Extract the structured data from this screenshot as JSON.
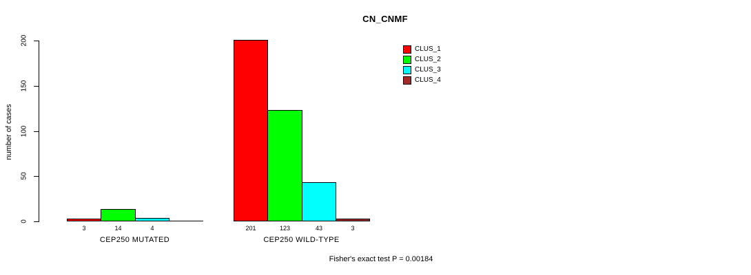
{
  "chart_data": {
    "type": "bar",
    "title": "CN_CNMF",
    "ylabel": "number of cases",
    "xlabel": "",
    "ylim": [
      0,
      200
    ],
    "yticks": [
      0,
      50,
      100,
      150,
      200
    ],
    "grid": false,
    "legend_position": "top-right",
    "series": [
      {
        "name": "CLUS_1",
        "color": "#FF0000"
      },
      {
        "name": "CLUS_2",
        "color": "#00FF00"
      },
      {
        "name": "CLUS_3",
        "color": "#00FFFF"
      },
      {
        "name": "CLUS_4",
        "color": "#A52A2A"
      }
    ],
    "groups": [
      {
        "label": "CEP250 MUTATED",
        "values": [
          3,
          14,
          4,
          0
        ],
        "bar_labels": [
          "3",
          "14",
          "4",
          ""
        ]
      },
      {
        "label": "CEP250 WILD-TYPE",
        "values": [
          201,
          123,
          43,
          3
        ],
        "bar_labels": [
          "201",
          "123",
          "43",
          "3"
        ]
      }
    ],
    "annotation": "Fisher's exact test P = 0.00184"
  }
}
